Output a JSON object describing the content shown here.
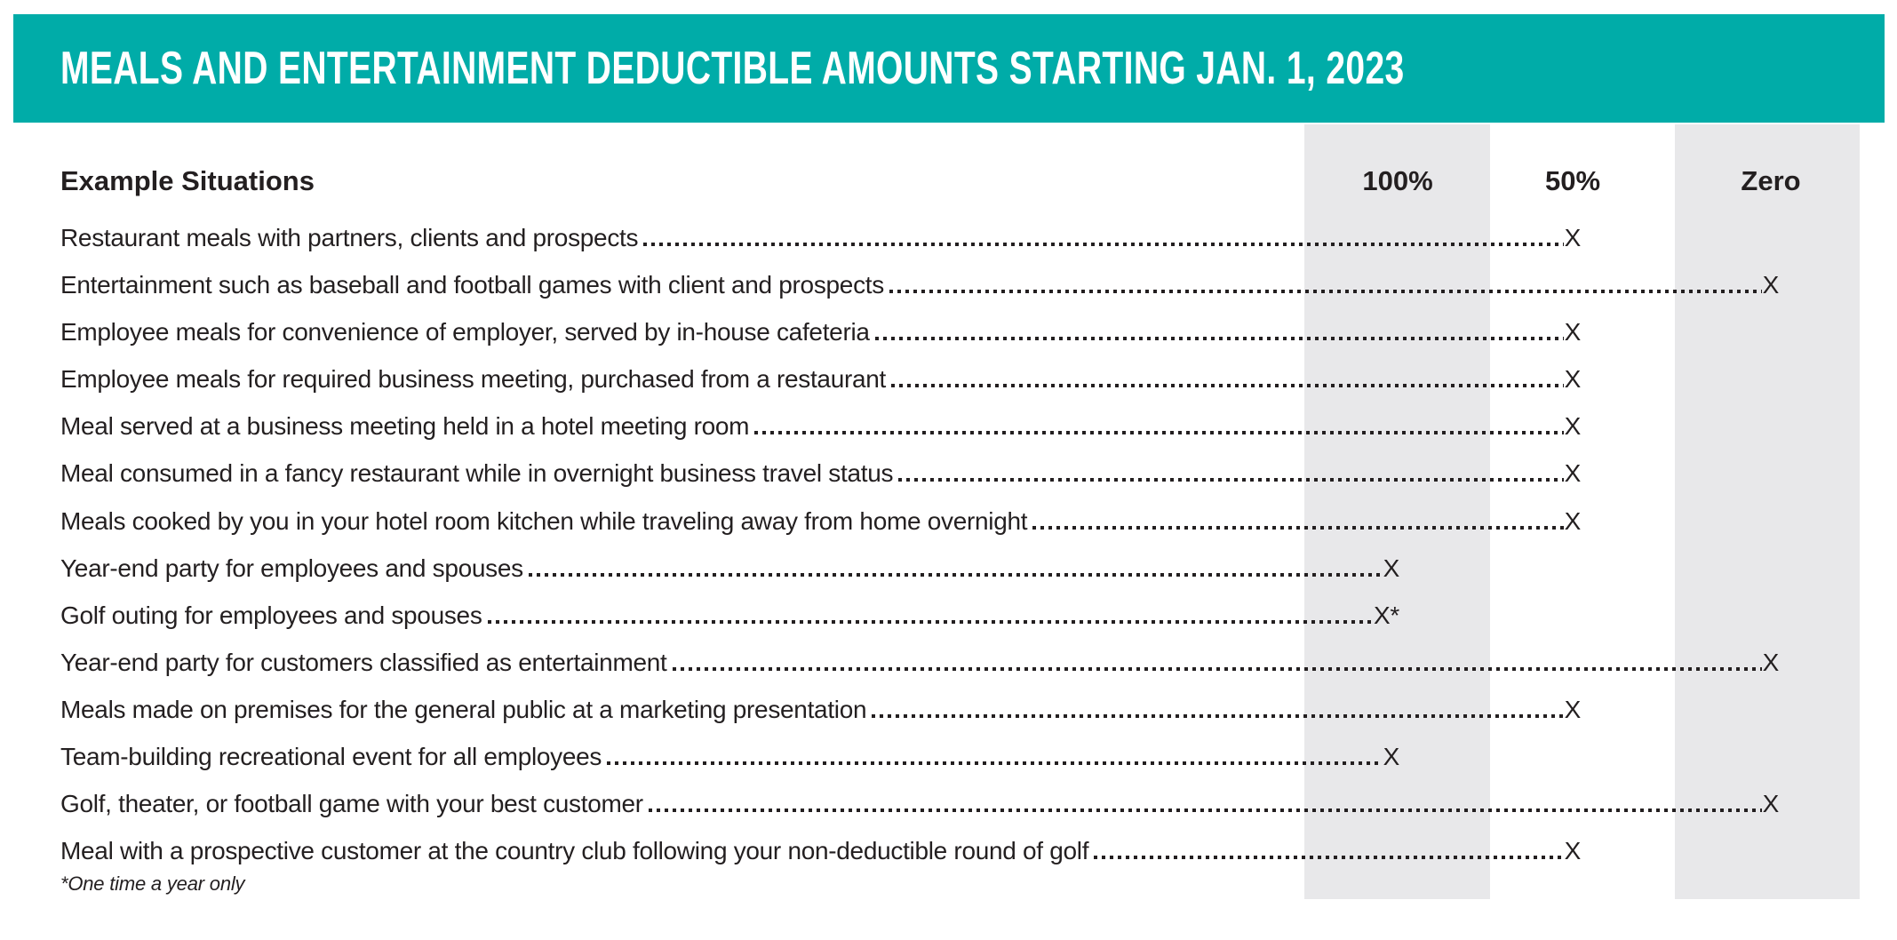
{
  "banner": {
    "title": "MEALS AND ENTERTAINMENT DEDUCTIBLE AMOUNTS STARTING JAN. 1, 2023"
  },
  "colors": {
    "teal": "#00aca8",
    "band_gray": "#e8e8ea",
    "ink": "#231f20"
  },
  "table": {
    "situations_header": "Example Situations",
    "columns": [
      {
        "id": "100",
        "label": "100%"
      },
      {
        "id": "50",
        "label": "50%"
      },
      {
        "id": "zero",
        "label": "Zero"
      }
    ],
    "rows": [
      {
        "label": "Restaurant meals with partners, clients and prospects",
        "deduction": "50",
        "mark": "X"
      },
      {
        "label": "Entertainment such as baseball and football games with client and prospects",
        "deduction": "zero",
        "mark": "X"
      },
      {
        "label": "Employee meals for convenience of employer, served by in-house cafeteria",
        "deduction": "50",
        "mark": "X"
      },
      {
        "label": "Employee meals for required business meeting, purchased from a restaurant",
        "deduction": "50",
        "mark": "X"
      },
      {
        "label": "Meal served at a business meeting held in a hotel meeting room",
        "deduction": "50",
        "mark": "X"
      },
      {
        "label": "Meal consumed in a fancy restaurant while in overnight business travel status",
        "deduction": "50",
        "mark": "X"
      },
      {
        "label": "Meals cooked by you in your hotel room kitchen while traveling away from home overnight",
        "deduction": "50",
        "mark": "X"
      },
      {
        "label": "Year-end party for employees and spouses",
        "deduction": "100",
        "mark": "X"
      },
      {
        "label": "Golf outing for employees and spouses",
        "deduction": "100",
        "mark": "X*"
      },
      {
        "label": "Year-end party for customers classified as entertainment",
        "deduction": "zero",
        "mark": "X"
      },
      {
        "label": "Meals made on premises for the general public at a marketing presentation",
        "deduction": "50",
        "mark": "X"
      },
      {
        "label": "Team-building recreational event for all employees",
        "deduction": "100",
        "mark": "X"
      },
      {
        "label": "Golf, theater, or football game with your best customer",
        "deduction": "zero",
        "mark": "X"
      },
      {
        "label": "Meal with a prospective customer at the country club following your non-deductible round of golf",
        "deduction": "50",
        "mark": "X"
      }
    ],
    "footnote": "*One time a year only"
  }
}
